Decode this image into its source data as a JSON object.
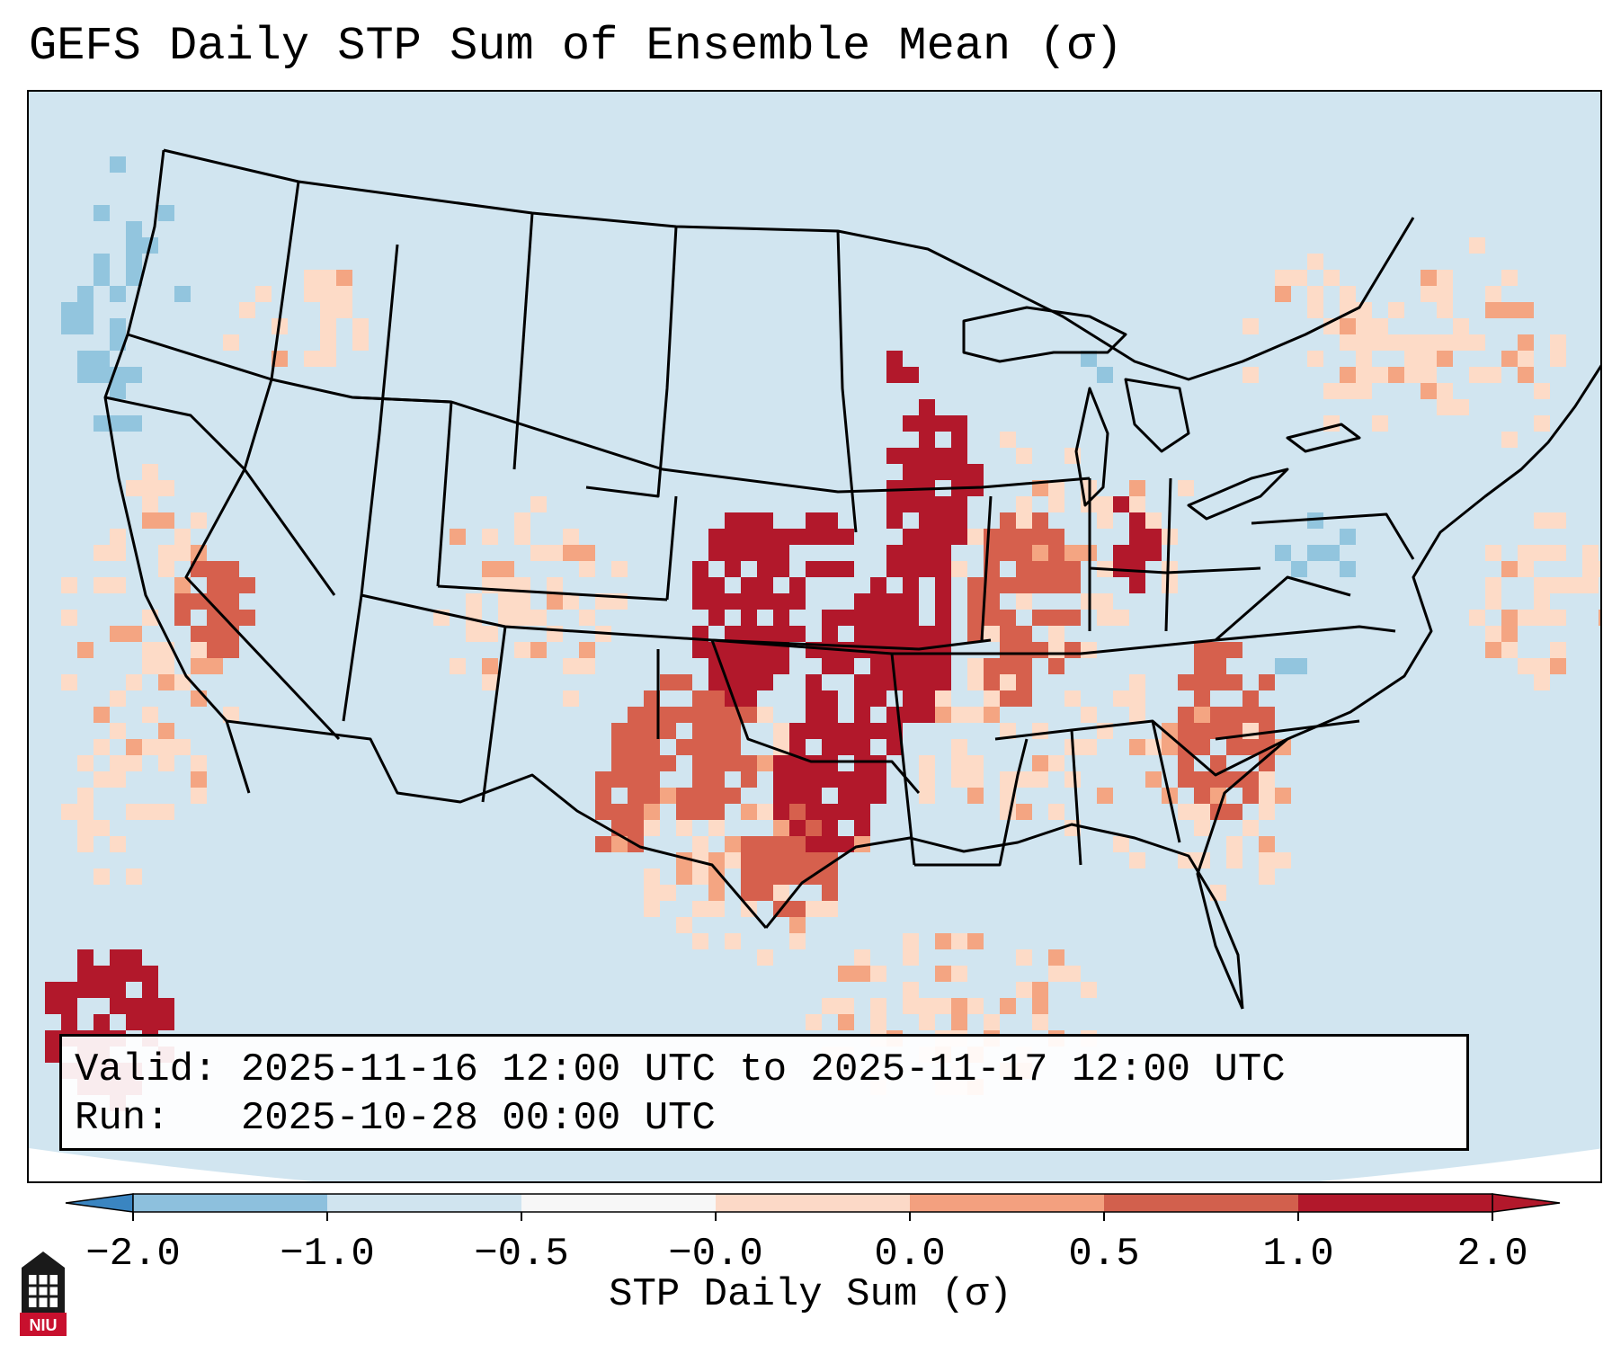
{
  "title": "GEFS Daily STP Sum of Ensemble Mean (σ)",
  "info": {
    "valid_label": "Valid:",
    "valid_value": "2025-11-16 12:00 UTC to 2025-11-17 12:00 UTC",
    "run_label": "Run:",
    "run_value": "2025-10-28 00:00 UTC"
  },
  "colorbar": {
    "label": "STP Daily Sum (σ)",
    "ticks": [
      "−2.0",
      "−1.0",
      "−0.5",
      "−0.0",
      "0.0",
      "0.5",
      "1.0",
      "2.0"
    ],
    "colors": [
      "#3a85c1",
      "#8dc0dd",
      "#d0e4ef",
      "#f7f7f7",
      "#fcd9c7",
      "#f3a07f",
      "#d2604d",
      "#b2182b"
    ],
    "extend": "both"
  },
  "map": {
    "projection": "Lambert conformal",
    "region": "CONUS",
    "colors": {
      "background": "#d1e5f0",
      "strong_negative": "#92c5de",
      "light_positive": "#fddbc7",
      "medium_positive": "#f4a582",
      "strong_positive": "#d6604d",
      "extreme_positive": "#b2182b",
      "border": "#000000"
    }
  },
  "logo": {
    "text": "NIU"
  }
}
